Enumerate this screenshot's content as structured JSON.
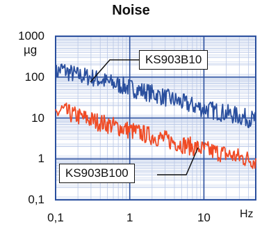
{
  "chart_data": {
    "type": "line",
    "title": "Noise",
    "x_scale": "log",
    "y_scale": "log",
    "xlim": [
      0.1,
      50
    ],
    "ylim": [
      0.1,
      1000
    ],
    "xunit": "Hz",
    "yunit": "µg",
    "x_ticks": [
      "0,1",
      "1",
      "10"
    ],
    "y_ticks": [
      "0,1",
      "1",
      "10",
      "100",
      "1000"
    ],
    "grid": true,
    "series": [
      {
        "name": "KS903B10",
        "color": "#2a4f9e",
        "x": [
          0.1,
          0.12,
          0.15,
          0.2,
          0.3,
          0.5,
          0.7,
          1,
          2,
          3,
          5,
          7,
          10,
          20,
          30,
          50
        ],
        "values": [
          120,
          160,
          130,
          110,
          100,
          75,
          65,
          55,
          40,
          32,
          24,
          20,
          17,
          13,
          11,
          9
        ]
      },
      {
        "name": "KS903B100",
        "color": "#f04a24",
        "x": [
          0.1,
          0.12,
          0.15,
          0.2,
          0.3,
          0.5,
          0.7,
          1,
          2,
          3,
          5,
          7,
          10,
          20,
          30,
          50
        ],
        "values": [
          12,
          16,
          13,
          11,
          9,
          7,
          6,
          5,
          3.6,
          3,
          2.3,
          2,
          1.7,
          1.3,
          1.1,
          0.9
        ]
      }
    ]
  },
  "legend": {
    "top_label": "KS903B10",
    "bottom_label": "KS903B100"
  }
}
